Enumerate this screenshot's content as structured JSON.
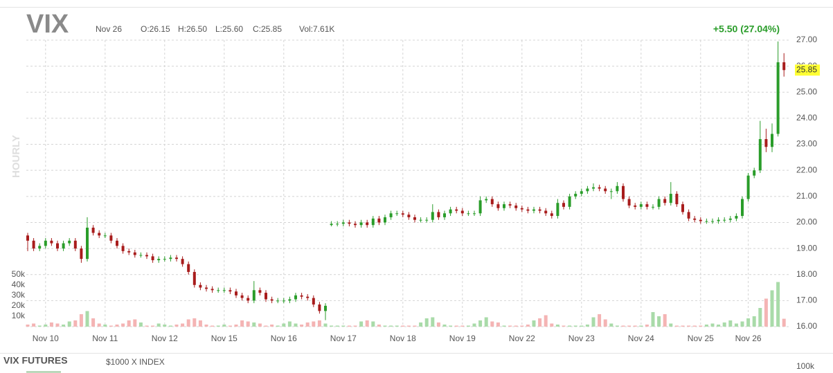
{
  "chart_data": {
    "type": "candlestick",
    "title": "VIX",
    "info": [
      "Nov 26",
      "O:26.15",
      "H:26.50",
      "L:25.60",
      "C:25.85",
      "Vol:7.61K"
    ],
    "change": "+5.50 (27.04%)",
    "interval": "HOURLY",
    "footer": {
      "title": "VIX FUTURES",
      "subtitle": "$1000 X INDEX",
      "tick": "100k"
    },
    "up_color": "#2a9d2a",
    "down_color": "#a81c1c",
    "volume_up_color": "#a9dba9",
    "volume_down_color": "#f4b4b4",
    "last_color": "#ffff33",
    "grid": true,
    "ylim": [
      16,
      27
    ],
    "yticks": [
      {
        "value": 16,
        "label": "16.00"
      },
      {
        "value": 17,
        "label": "17.00"
      },
      {
        "value": 18,
        "label": "18.00"
      },
      {
        "value": 19,
        "label": "19.00"
      },
      {
        "value": 20,
        "label": "20.00"
      },
      {
        "value": 21,
        "label": "21.00"
      },
      {
        "value": 22,
        "label": "22.00"
      },
      {
        "value": 23,
        "label": "23.00"
      },
      {
        "value": 24,
        "label": "24.00"
      },
      {
        "value": 25,
        "label": "25.00"
      },
      {
        "value": 26,
        "label": "26.00"
      },
      {
        "value": 27,
        "label": "27.00"
      }
    ],
    "y2lim": [
      0,
      55000
    ],
    "y2ticks": [
      {
        "value": 10000,
        "label": "10k"
      },
      {
        "value": 20000,
        "label": "20k"
      },
      {
        "value": 30000,
        "label": "30k"
      },
      {
        "value": 40000,
        "label": "40k"
      },
      {
        "value": 50000,
        "label": "50k"
      }
    ],
    "categories": [
      null,
      null,
      null,
      "Nov 10",
      null,
      null,
      null,
      null,
      null,
      null,
      null,
      null,
      null,
      "Nov 11",
      null,
      null,
      null,
      null,
      null,
      null,
      null,
      null,
      null,
      "Nov 12",
      null,
      null,
      null,
      null,
      null,
      null,
      null,
      null,
      null,
      "Nov 15",
      null,
      null,
      null,
      null,
      null,
      null,
      null,
      null,
      null,
      "Nov 16",
      null,
      null,
      null,
      null,
      null,
      null,
      null,
      null,
      null,
      "Nov 17",
      null,
      null,
      null,
      null,
      null,
      null,
      null,
      null,
      null,
      "Nov 18",
      null,
      null,
      null,
      null,
      null,
      null,
      null,
      null,
      null,
      "Nov 19",
      null,
      null,
      null,
      null,
      null,
      null,
      null,
      null,
      null,
      "Nov 22",
      null,
      null,
      null,
      null,
      null,
      null,
      null,
      null,
      null,
      "Nov 23",
      null,
      null,
      null,
      null,
      null,
      null,
      null,
      null,
      null,
      "Nov 24",
      null,
      null,
      null,
      null,
      null,
      null,
      null,
      null,
      null,
      "Nov 25",
      null,
      null,
      null,
      null,
      null,
      null,
      null,
      "Nov 26",
      null,
      null,
      null,
      null,
      null,
      null
    ],
    "open": [
      19.5,
      19.3,
      19.0,
      19.1,
      19.3,
      19.2,
      19.0,
      19.2,
      19.3,
      19.0,
      18.6,
      19.8,
      19.6,
      19.5,
      19.5,
      19.3,
      19.1,
      18.9,
      18.85,
      18.75,
      18.75,
      18.7,
      18.55,
      18.6,
      18.6,
      18.65,
      18.6,
      18.4,
      18.1,
      17.6,
      17.5,
      17.45,
      17.4,
      17.4,
      17.4,
      17.35,
      17.2,
      17.1,
      17.0,
      17.4,
      17.3,
      17.05,
      17.0,
      17.0,
      17.0,
      17.05,
      17.2,
      17.15,
      17.1,
      16.85,
      16.6,
      19.9,
      19.95,
      19.95,
      20.0,
      19.95,
      19.9,
      20.0,
      19.9,
      20.15,
      20.0,
      20.2,
      20.35,
      20.35,
      20.3,
      20.2,
      20.1,
      20.1,
      20.1,
      20.4,
      20.2,
      20.35,
      20.5,
      20.45,
      20.35,
      20.35,
      20.35,
      20.85,
      20.9,
      20.7,
      20.55,
      20.7,
      20.65,
      20.55,
      20.5,
      20.45,
      20.5,
      20.45,
      20.35,
      20.25,
      20.75,
      20.6,
      21.0,
      21.1,
      21.2,
      21.3,
      21.35,
      21.3,
      21.2,
      21.2,
      21.4,
      20.9,
      20.65,
      20.6,
      20.7,
      20.6,
      20.6,
      20.9,
      20.75,
      21.1,
      20.7,
      20.4,
      20.15,
      20.1,
      20.05,
      20.05,
      20.05,
      20.1,
      20.1,
      20.15,
      20.25,
      20.9,
      21.8,
      22.0,
      23.2,
      22.9,
      23.4,
      26.15
    ],
    "high": [
      19.6,
      19.4,
      19.2,
      19.4,
      19.4,
      19.3,
      19.3,
      19.4,
      19.4,
      19.1,
      20.2,
      19.9,
      19.7,
      19.6,
      19.6,
      19.4,
      19.2,
      19.0,
      18.95,
      18.85,
      18.85,
      18.8,
      18.7,
      18.7,
      18.75,
      18.75,
      18.7,
      18.5,
      18.2,
      17.7,
      17.6,
      17.55,
      17.5,
      17.5,
      17.5,
      17.45,
      17.3,
      17.2,
      17.75,
      17.5,
      17.4,
      17.15,
      17.1,
      17.1,
      17.15,
      17.3,
      17.3,
      17.25,
      17.2,
      16.95,
      16.9,
      20.05,
      20.05,
      20.1,
      20.1,
      20.05,
      20.1,
      20.1,
      20.25,
      20.25,
      20.3,
      20.45,
      20.45,
      20.45,
      20.4,
      20.3,
      20.2,
      20.2,
      20.7,
      20.5,
      20.45,
      20.6,
      20.6,
      20.55,
      20.45,
      20.45,
      21.0,
      21.0,
      21.0,
      20.8,
      20.8,
      20.8,
      20.75,
      20.65,
      20.6,
      20.6,
      20.6,
      20.55,
      20.45,
      20.9,
      20.85,
      21.1,
      21.2,
      21.3,
      21.4,
      21.5,
      21.45,
      21.4,
      21.3,
      21.55,
      21.5,
      21.0,
      20.75,
      20.8,
      20.8,
      20.7,
      21.0,
      21.0,
      21.55,
      21.2,
      20.8,
      20.5,
      20.25,
      20.2,
      20.15,
      20.15,
      20.2,
      20.2,
      20.25,
      20.35,
      21.0,
      21.9,
      22.1,
      23.9,
      23.6,
      23.8,
      26.95,
      26.5
    ],
    "low": [
      18.9,
      18.9,
      18.9,
      19.0,
      19.1,
      18.9,
      18.9,
      19.1,
      18.9,
      18.45,
      18.5,
      19.5,
      19.4,
      19.4,
      19.2,
      19.0,
      18.8,
      18.75,
      18.65,
      18.65,
      18.6,
      18.45,
      18.45,
      18.5,
      18.5,
      18.5,
      18.3,
      18.0,
      17.5,
      17.4,
      17.35,
      17.3,
      17.3,
      17.3,
      17.25,
      17.1,
      17.0,
      16.9,
      16.9,
      17.2,
      16.95,
      16.9,
      16.9,
      16.9,
      16.9,
      16.95,
      17.05,
      17.0,
      16.75,
      16.5,
      16.25,
      19.85,
      19.85,
      19.85,
      19.85,
      19.8,
      19.8,
      19.8,
      19.8,
      19.9,
      19.9,
      20.1,
      20.25,
      20.2,
      20.1,
      20.0,
      20.0,
      20.0,
      20.0,
      20.1,
      20.1,
      20.25,
      20.35,
      20.25,
      20.25,
      20.25,
      20.25,
      20.75,
      20.6,
      20.45,
      20.45,
      20.55,
      20.45,
      20.4,
      20.35,
      20.35,
      20.35,
      20.25,
      20.15,
      20.15,
      20.5,
      20.5,
      20.9,
      21.0,
      21.1,
      21.2,
      21.2,
      21.1,
      20.9,
      21.1,
      20.8,
      20.55,
      20.5,
      20.5,
      20.5,
      20.5,
      20.5,
      20.65,
      20.65,
      20.6,
      20.3,
      20.05,
      20.0,
      19.95,
      19.95,
      19.95,
      19.95,
      20.0,
      20.0,
      20.05,
      20.15,
      20.8,
      21.7,
      21.9,
      22.7,
      22.7,
      23.3,
      25.6
    ],
    "close": [
      19.3,
      19.0,
      19.1,
      19.3,
      19.2,
      19.0,
      19.2,
      19.3,
      19.0,
      18.6,
      19.8,
      19.6,
      19.5,
      19.5,
      19.3,
      19.1,
      18.9,
      18.85,
      18.75,
      18.75,
      18.7,
      18.55,
      18.6,
      18.6,
      18.65,
      18.6,
      18.4,
      18.1,
      17.6,
      17.5,
      17.45,
      17.4,
      17.4,
      17.4,
      17.35,
      17.2,
      17.1,
      17.0,
      17.4,
      17.3,
      17.05,
      17.0,
      17.0,
      17.0,
      17.05,
      17.2,
      17.15,
      17.1,
      16.85,
      16.6,
      16.8,
      19.95,
      19.95,
      20.0,
      19.95,
      19.9,
      20.0,
      19.9,
      20.15,
      20.0,
      20.2,
      20.35,
      20.35,
      20.3,
      20.2,
      20.1,
      20.1,
      20.1,
      20.4,
      20.2,
      20.35,
      20.5,
      20.45,
      20.35,
      20.35,
      20.35,
      20.85,
      20.9,
      20.7,
      20.55,
      20.7,
      20.65,
      20.55,
      20.5,
      20.45,
      20.5,
      20.45,
      20.35,
      20.25,
      20.75,
      20.6,
      21.0,
      21.1,
      21.2,
      21.3,
      21.35,
      21.3,
      21.2,
      21.2,
      21.4,
      20.9,
      20.65,
      20.6,
      20.7,
      20.6,
      20.6,
      20.9,
      20.75,
      21.1,
      20.7,
      20.4,
      20.15,
      20.1,
      20.05,
      20.05,
      20.05,
      20.1,
      20.1,
      20.15,
      20.25,
      20.9,
      21.8,
      22.0,
      23.2,
      22.9,
      23.4,
      26.15,
      25.85
    ],
    "volume": [
      2000,
      3000,
      1000,
      2000,
      4000,
      3000,
      2000,
      5000,
      6000,
      12000,
      15000,
      8000,
      3000,
      2000,
      1000,
      2000,
      3000,
      6000,
      7000,
      4000,
      1000,
      1000,
      3000,
      2000,
      1000,
      2000,
      3000,
      7000,
      8000,
      6000,
      2000,
      1000,
      1000,
      2000,
      1000,
      2000,
      6000,
      5000,
      4000,
      3000,
      1000,
      2000,
      1000,
      3000,
      5000,
      3000,
      2000,
      4000,
      5000,
      6000,
      3000,
      1000,
      1000,
      1000,
      1000,
      1000,
      5000,
      6000,
      5000,
      2000,
      1000,
      1000,
      1000,
      1000,
      1000,
      1000,
      4000,
      8000,
      9000,
      4000,
      2000,
      1000,
      1000,
      1000,
      1000,
      3000,
      6000,
      9000,
      5000,
      4000,
      1000,
      1000,
      1000,
      1000,
      2000,
      6000,
      8000,
      11000,
      3000,
      2000,
      1000,
      1000,
      1000,
      1000,
      2000,
      9000,
      12000,
      7000,
      3000,
      1000,
      1000,
      1000,
      1000,
      1000,
      2000,
      14000,
      10000,
      12000,
      3000,
      1000,
      1000,
      1000,
      1000,
      1000,
      2000,
      3000,
      2000,
      4000,
      6000,
      3000,
      5000,
      8000,
      10000,
      18000,
      27000,
      35000,
      43000,
      7610
    ]
  }
}
